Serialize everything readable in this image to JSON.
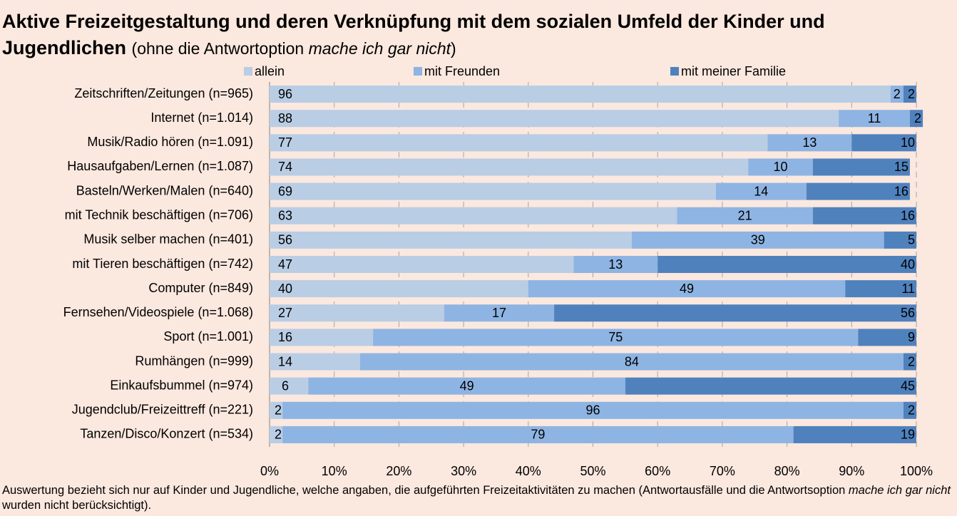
{
  "chart_data": {
    "type": "stacked_barh",
    "title": "Aktive Freizeitgestaltung und deren Verknüpfung mit dem sozialen Umfeld der Kinder und Jugendlichen",
    "subtitle": [
      "(ohne die Antwortoption ",
      "mache ich gar nicht",
      ")"
    ],
    "footnote": [
      "Auswertung bezieht sich nur auf Kinder und Jugendliche, welche angaben, die  aufgeführten Freizeitaktivitäten zu machen (Antwortausfälle und die Antwortsoption ",
      "mache ich gar nicht",
      " wurden nicht berücksichtigt)."
    ],
    "categories": [
      "Zeitschriften/Zeitungen (n=965)",
      "Internet (n=1.014)",
      "Musik/Radio hören (n=1.091)",
      "Hausaufgaben/Lernen (n=1.087)",
      "Basteln/Werken/Malen (n=640)",
      "mit Technik beschäftigen (n=706)",
      "Musik selber machen (n=401)",
      "mit Tieren beschäftigen (n=742)",
      "Computer (n=849)",
      "Fernsehen/Videospiele (n=1.068)",
      "Sport (n=1.001)",
      "Rumhängen (n=999)",
      "Einkaufsbummel (n=974)",
      "Jugendclub/Freizeittreff (n=221)",
      "Tanzen/Disco/Konzert (n=534)"
    ],
    "series": [
      {
        "name": "allein",
        "color": "#b9cde5",
        "values": [
          96,
          88,
          77,
          74,
          69,
          63,
          56,
          47,
          40,
          27,
          16,
          14,
          6,
          2,
          2
        ]
      },
      {
        "name": "mit Freunden",
        "color": "#8eb4e3",
        "values": [
          2,
          11,
          13,
          10,
          14,
          21,
          39,
          13,
          49,
          17,
          75,
          84,
          49,
          96,
          79
        ]
      },
      {
        "name": "mit meiner Familie",
        "color": "#4f81bd",
        "values": [
          2,
          2,
          10,
          15,
          16,
          16,
          5,
          40,
          11,
          56,
          9,
          2,
          45,
          2,
          19
        ]
      }
    ],
    "xlim": [
      0,
      100
    ],
    "xticks": [
      {
        "value": 0,
        "label": "0%"
      },
      {
        "value": 10,
        "label": "10%"
      },
      {
        "value": 20,
        "label": "20%"
      },
      {
        "value": 30,
        "label": "30%"
      },
      {
        "value": 40,
        "label": "40%"
      },
      {
        "value": 50,
        "label": "50%"
      },
      {
        "value": 60,
        "label": "60%"
      },
      {
        "value": 70,
        "label": "70%"
      },
      {
        "value": 80,
        "label": "80%"
      },
      {
        "value": 90,
        "label": "90%"
      },
      {
        "value": 100,
        "label": "100%"
      }
    ],
    "grid": true,
    "legend": "top"
  }
}
